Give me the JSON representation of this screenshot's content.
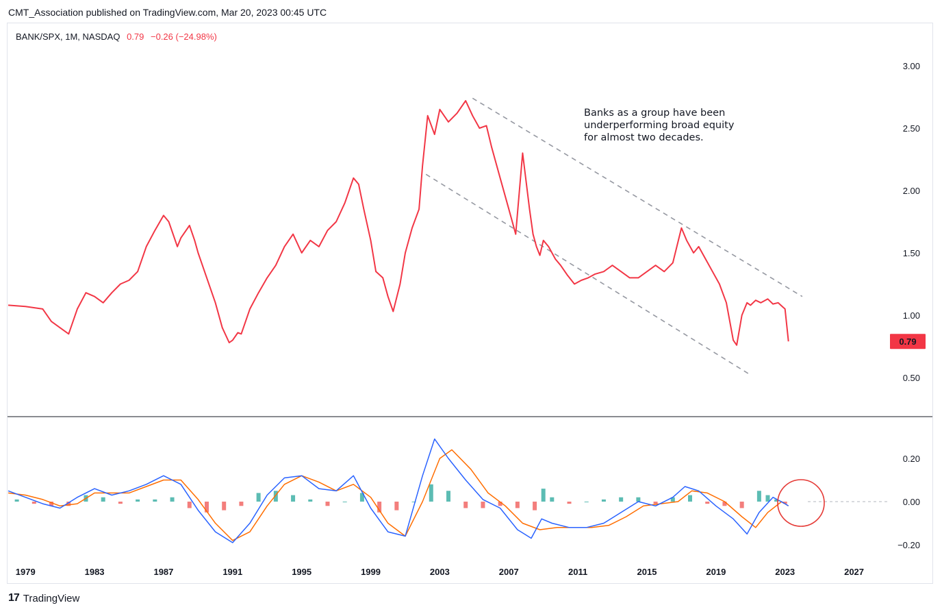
{
  "header": {
    "publisher": "CMT_Association published on TradingView.com, Mar 20, 2023 00:45 UTC"
  },
  "symbol": {
    "name": "BANK/SPX, 1M, NASDAQ",
    "last": "0.79",
    "change": "−0.26 (−24.98%)"
  },
  "annotation": "Banks as a group have been\nunderperforming broad equity\nfor almost two decades.",
  "footer": {
    "brand": "TradingView",
    "logo": "17"
  },
  "colors": {
    "price": "#f23645",
    "macd": "#2962ff",
    "signal": "#ff6d00",
    "hist_up": "#26a69a",
    "hist_down": "#ef5350",
    "trend": "#9598a1",
    "circle": "#e53935"
  },
  "icons": {
    "logo": "tradingview-logo-icon"
  },
  "chart_data": [
    {
      "type": "line",
      "name": "price",
      "x": [
        1978.0,
        1979.0,
        1980.0,
        1980.5,
        1981.0,
        1981.5,
        1982.0,
        1982.5,
        1983.0,
        1983.5,
        1984.0,
        1984.5,
        1985.0,
        1985.5,
        1986.0,
        1986.5,
        1987.0,
        1987.3,
        1987.8,
        1988.0,
        1988.5,
        1988.8,
        1989.0,
        1989.5,
        1990.0,
        1990.4,
        1990.8,
        1991.0,
        1991.3,
        1991.5,
        1992.0,
        1992.5,
        1993.0,
        1993.5,
        1994.0,
        1994.5,
        1995.0,
        1995.5,
        1996.0,
        1996.5,
        1997.0,
        1997.5,
        1998.0,
        1998.3,
        1998.6,
        1999.0,
        1999.3,
        1999.7,
        2000.0,
        2000.3,
        2000.7,
        2001.0,
        2001.4,
        2001.8,
        2002.0,
        2002.3,
        2002.7,
        2003.0,
        2003.5,
        2004.0,
        2004.5,
        2004.9,
        2005.3,
        2005.7,
        2006.0,
        2006.5,
        2007.0,
        2007.4,
        2007.8,
        2008.2,
        2008.4,
        2008.6,
        2008.8,
        2009.0,
        2009.3,
        2009.7,
        2010.0,
        2010.4,
        2010.8,
        2011.2,
        2011.6,
        2012.0,
        2012.5,
        2013.0,
        2013.5,
        2014.0,
        2014.5,
        2015.0,
        2015.5,
        2016.0,
        2016.5,
        2017.0,
        2017.3,
        2017.7,
        2018.0,
        2018.4,
        2018.8,
        2019.2,
        2019.6,
        2020.0,
        2020.2,
        2020.5,
        2020.8,
        2021.0,
        2021.3,
        2021.6,
        2022.0,
        2022.3,
        2022.6,
        2023.0,
        2023.2
      ],
      "y": [
        1.08,
        1.07,
        1.05,
        0.95,
        0.9,
        0.85,
        1.05,
        1.18,
        1.15,
        1.1,
        1.18,
        1.25,
        1.28,
        1.35,
        1.55,
        1.68,
        1.8,
        1.75,
        1.55,
        1.62,
        1.72,
        1.6,
        1.5,
        1.3,
        1.1,
        0.9,
        0.78,
        0.8,
        0.86,
        0.85,
        1.05,
        1.18,
        1.3,
        1.4,
        1.55,
        1.65,
        1.5,
        1.6,
        1.55,
        1.68,
        1.75,
        1.9,
        2.1,
        2.05,
        1.85,
        1.6,
        1.35,
        1.3,
        1.15,
        1.03,
        1.25,
        1.5,
        1.7,
        1.85,
        2.2,
        2.6,
        2.45,
        2.65,
        2.55,
        2.62,
        2.72,
        2.6,
        2.5,
        2.52,
        2.35,
        2.1,
        1.85,
        1.65,
        2.3,
        1.85,
        1.65,
        1.55,
        1.48,
        1.6,
        1.55,
        1.45,
        1.4,
        1.32,
        1.25,
        1.28,
        1.3,
        1.33,
        1.35,
        1.4,
        1.35,
        1.3,
        1.3,
        1.35,
        1.4,
        1.35,
        1.42,
        1.7,
        1.6,
        1.5,
        1.55,
        1.45,
        1.35,
        1.25,
        1.1,
        0.8,
        0.76,
        1.0,
        1.1,
        1.08,
        1.12,
        1.1,
        1.13,
        1.09,
        1.1,
        1.05,
        0.79
      ]
    },
    {
      "type": "line",
      "name": "macd",
      "x": [
        1978.0,
        1979.0,
        1980.0,
        1981.0,
        1982.0,
        1983.0,
        1984.0,
        1985.0,
        1986.0,
        1987.0,
        1988.0,
        1989.0,
        1990.0,
        1991.0,
        1992.0,
        1993.0,
        1994.0,
        1995.0,
        1996.0,
        1997.0,
        1998.0,
        1999.0,
        2000.0,
        2001.0,
        2002.0,
        2002.7,
        2003.5,
        2004.5,
        2005.5,
        2006.5,
        2007.5,
        2008.3,
        2008.9,
        2009.5,
        2010.5,
        2011.5,
        2012.5,
        2013.5,
        2014.5,
        2015.5,
        2016.5,
        2017.2,
        2018.0,
        2019.0,
        2020.0,
        2020.8,
        2021.5,
        2022.3,
        2023.0,
        2023.2
      ],
      "y": [
        0.05,
        0.02,
        -0.01,
        -0.03,
        0.02,
        0.06,
        0.03,
        0.05,
        0.08,
        0.12,
        0.08,
        -0.04,
        -0.14,
        -0.19,
        -0.1,
        0.03,
        0.11,
        0.12,
        0.06,
        0.05,
        0.12,
        -0.03,
        -0.14,
        -0.16,
        0.12,
        0.29,
        0.2,
        0.1,
        0.01,
        -0.03,
        -0.13,
        -0.17,
        -0.08,
        -0.1,
        -0.12,
        -0.12,
        -0.1,
        -0.05,
        0.0,
        -0.02,
        0.02,
        0.07,
        0.05,
        -0.02,
        -0.08,
        -0.15,
        -0.05,
        0.02,
        -0.01,
        -0.02
      ]
    },
    {
      "type": "line",
      "name": "signal",
      "x": [
        1978.0,
        1979.0,
        1980.0,
        1981.0,
        1982.0,
        1983.0,
        1984.0,
        1985.0,
        1986.0,
        1987.0,
        1988.0,
        1989.0,
        1990.0,
        1991.0,
        1992.0,
        1993.0,
        1994.0,
        1995.0,
        1996.0,
        1997.0,
        1998.0,
        1999.0,
        2000.0,
        2001.0,
        2002.0,
        2003.0,
        2003.7,
        2004.8,
        2005.8,
        2006.8,
        2007.8,
        2008.8,
        2009.8,
        2010.8,
        2011.8,
        2012.8,
        2013.8,
        2014.8,
        2015.8,
        2016.8,
        2017.6,
        2018.5,
        2019.5,
        2020.5,
        2021.3,
        2022.0,
        2022.8,
        2023.2
      ],
      "y": [
        0.04,
        0.03,
        0.01,
        -0.02,
        -0.01,
        0.04,
        0.04,
        0.04,
        0.07,
        0.1,
        0.1,
        0.01,
        -0.1,
        -0.18,
        -0.14,
        -0.02,
        0.08,
        0.12,
        0.09,
        0.05,
        0.08,
        0.02,
        -0.1,
        -0.16,
        0.0,
        0.2,
        0.24,
        0.15,
        0.04,
        -0.02,
        -0.1,
        -0.13,
        -0.12,
        -0.12,
        -0.12,
        -0.11,
        -0.07,
        -0.02,
        -0.01,
        0.0,
        0.05,
        0.04,
        0.0,
        -0.07,
        -0.12,
        -0.05,
        0.0,
        -0.02
      ]
    },
    {
      "type": "bar",
      "name": "histogram",
      "x": [
        1978.5,
        1979.5,
        1980.5,
        1981.5,
        1982.5,
        1983.5,
        1984.5,
        1985.5,
        1986.5,
        1987.5,
        1988.5,
        1989.5,
        1990.5,
        1991.5,
        1992.5,
        1993.5,
        1994.5,
        1995.5,
        1996.5,
        1997.5,
        1998.5,
        1999.5,
        2000.5,
        2001.5,
        2002.5,
        2003.5,
        2004.5,
        2005.5,
        2006.5,
        2007.5,
        2008.5,
        2009.0,
        2009.5,
        2010.5,
        2011.5,
        2012.5,
        2013.5,
        2014.5,
        2015.5,
        2016.5,
        2017.5,
        2018.5,
        2019.5,
        2020.5,
        2021.5,
        2022.0,
        2022.5,
        2023.0
      ],
      "y": [
        0.01,
        -0.01,
        -0.02,
        -0.02,
        0.03,
        0.02,
        -0.01,
        0.01,
        0.01,
        0.02,
        -0.03,
        -0.05,
        -0.04,
        -0.02,
        0.04,
        0.05,
        0.03,
        0.01,
        -0.02,
        0.0,
        0.04,
        -0.05,
        -0.04,
        0.0,
        0.08,
        0.05,
        -0.03,
        -0.03,
        -0.02,
        -0.03,
        -0.04,
        0.06,
        0.02,
        -0.01,
        0.0,
        0.01,
        0.02,
        0.02,
        -0.01,
        0.02,
        0.03,
        -0.01,
        -0.02,
        -0.03,
        0.05,
        0.03,
        0.01,
        -0.01
      ]
    }
  ],
  "axes": {
    "price_ticks": [
      "3.00",
      "2.50",
      "2.00",
      "1.50",
      "1.00",
      "0.50"
    ],
    "macd_ticks": [
      "0.20",
      "0.00",
      "−0.20"
    ],
    "x_ticks": [
      "1979",
      "1983",
      "1987",
      "1991",
      "1995",
      "1999",
      "2003",
      "2007",
      "2011",
      "2015",
      "2019",
      "2023",
      "2027"
    ],
    "price_ylim": [
      0.0,
      3.3
    ],
    "macd_ylim": [
      -0.3,
      0.3
    ],
    "x_range": [
      1978.0,
      2029.0
    ]
  }
}
